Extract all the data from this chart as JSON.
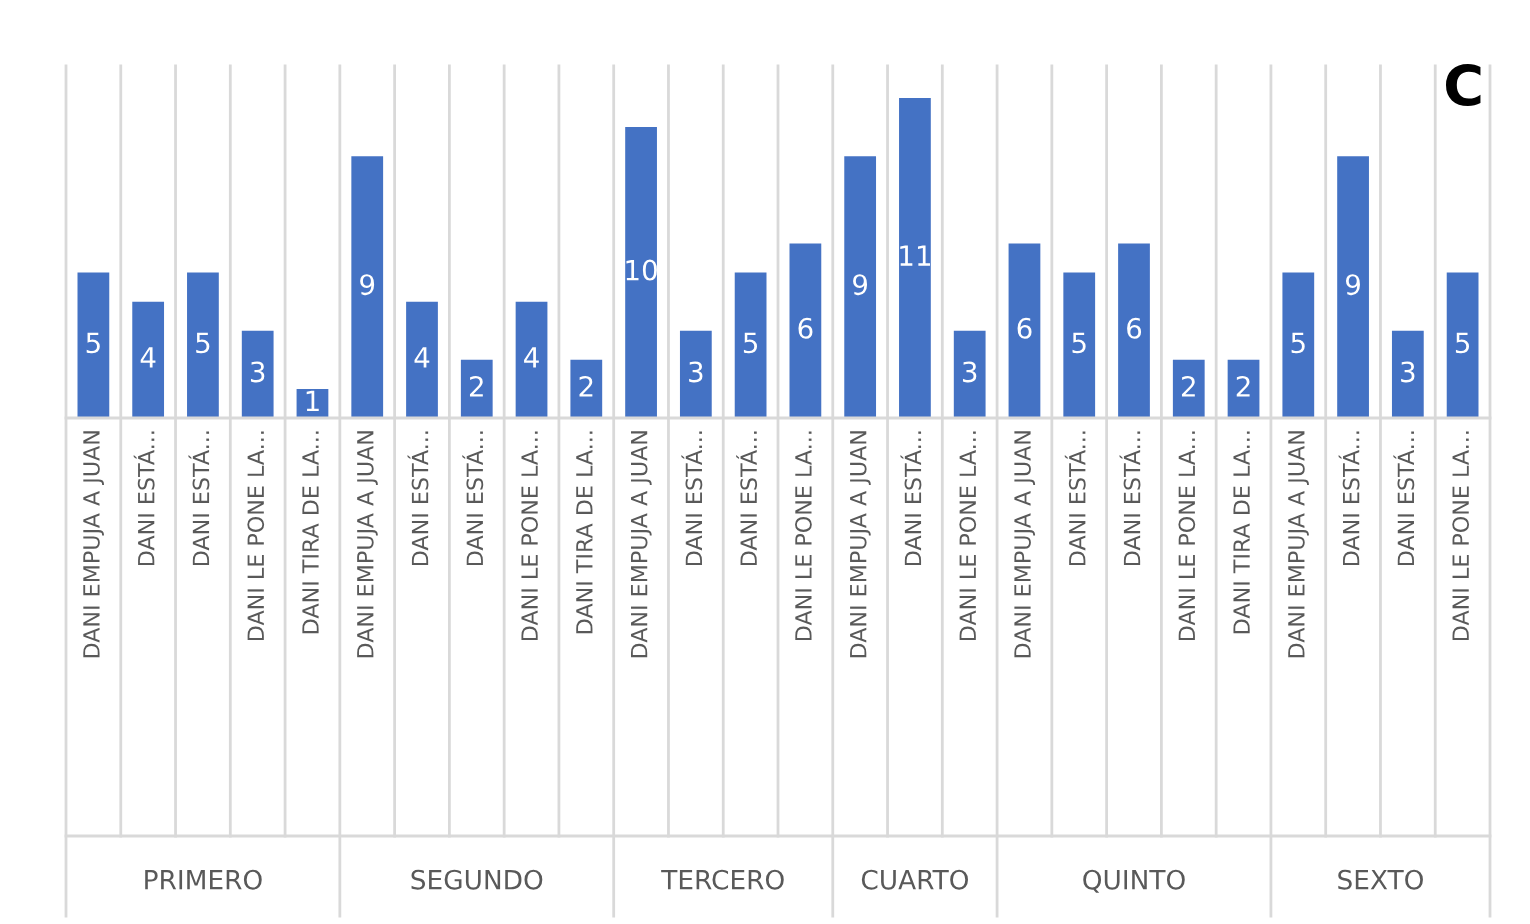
{
  "chart_data": {
    "type": "bar",
    "categories": [
      "DANI EMPUJA A JUAN",
      "DANI ESTÁ...",
      "DANI ESTÁ...",
      "DANI LE PONE LA...",
      "DANI TIRA DE LA...",
      "DANI EMPUJA A JUAN",
      "DANI ESTÁ...",
      "DANI ESTÁ...",
      "DANI LE PONE LA...",
      "DANI TIRA DE LA...",
      "DANI EMPUJA A JUAN",
      "DANI ESTÁ...",
      "DANI ESTÁ...",
      "DANI LE PONE LA...",
      "DANI EMPUJA A JUAN",
      "DANI ESTÁ...",
      "DANI LE PONE LA...",
      "DANI EMPUJA A JUAN",
      "DANI ESTÁ...",
      "DANI ESTÁ...",
      "DANI LE PONE LA...",
      "DANI TIRA DE LA...",
      "DANI EMPUJA A JUAN",
      "DANI ESTÁ...",
      "DANI ESTÁ...",
      "DANI LE PONE LA..."
    ],
    "values": [
      5,
      4,
      5,
      3,
      1,
      9,
      4,
      2,
      4,
      2,
      10,
      3,
      5,
      6,
      9,
      11,
      3,
      6,
      5,
      6,
      2,
      2,
      5,
      9,
      3,
      5
    ],
    "color": "#4472c4",
    "data_labels": true,
    "grid": "x",
    "annotations": [
      "C",
      "PRIMERO",
      "SEGUNDO",
      "TERCERO",
      "CUARTO",
      "QUINTO",
      "SEXTO"
    ]
  }
}
